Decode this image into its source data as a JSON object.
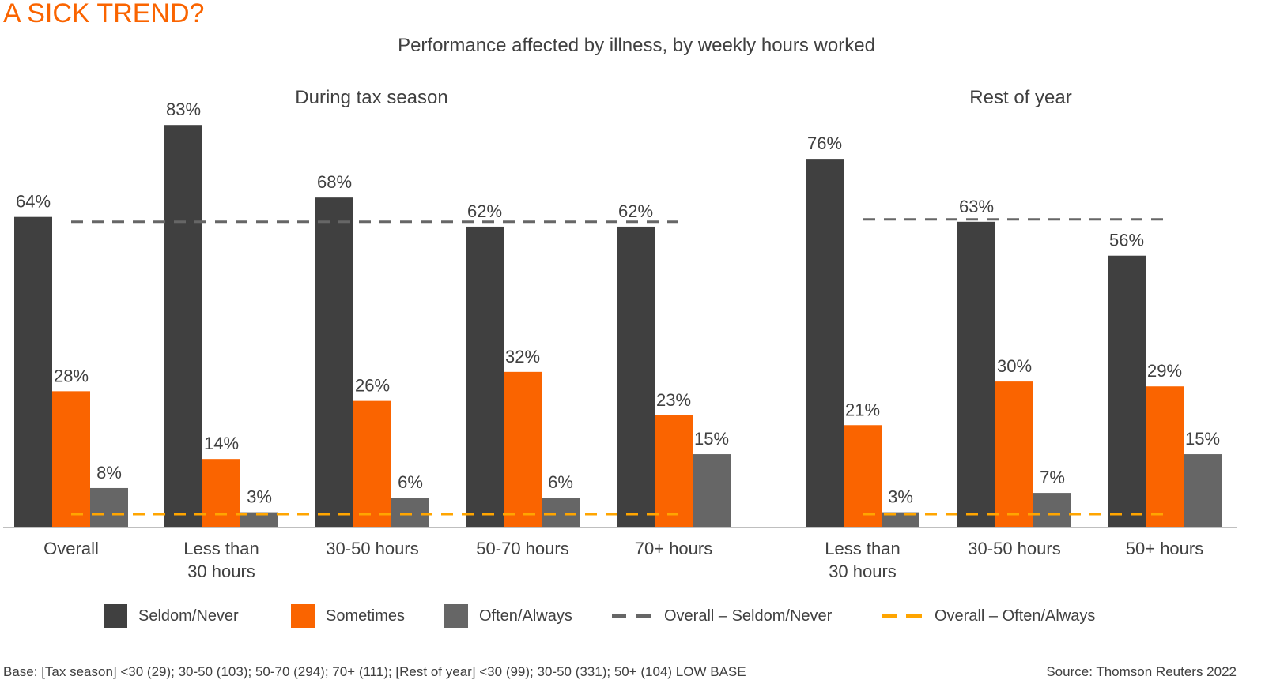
{
  "kicker": "A SICK TREND?",
  "colors": {
    "seldom": "#404040",
    "sometimes": "#fa6400",
    "often": "#666666",
    "overall_seldom_line": "#666666",
    "overall_often_line": "#ffa500",
    "axis": "#bfbfbf",
    "kicker": "#fa6400"
  },
  "legend": [
    {
      "label": "Seldom/Never",
      "kind": "bar",
      "color_key": "seldom"
    },
    {
      "label": "Sometimes",
      "kind": "bar",
      "color_key": "sometimes"
    },
    {
      "label": "Often/Always",
      "kind": "bar",
      "color_key": "often"
    },
    {
      "label": "Overall – Seldom/Never",
      "kind": "dash",
      "color_key": "overall_seldom_line"
    },
    {
      "label": "Overall – Often/Always",
      "kind": "dash",
      "color_key": "overall_often_line"
    }
  ],
  "footnote": "Base: [Tax season] <30 (29); 30-50 (103); 50-70 (294); 70+ (111); [Rest of year] <30 (99); 30-50 (331); 50+ (104) LOW BASE",
  "source": "Source: Thomson Reuters 2022",
  "chart_data": {
    "type": "bar",
    "title": "Performance affected by illness, by weekly hours worked",
    "xlabel": "",
    "ylabel": "",
    "ylim": [
      0,
      90
    ],
    "grid": false,
    "legend_position": "bottom",
    "series_names": [
      "Seldom/Never",
      "Sometimes",
      "Often/Always"
    ],
    "panels": [
      {
        "title": "During tax season",
        "categories": [
          [
            "Overall"
          ],
          [
            "Less than",
            "30 hours"
          ],
          [
            "30-50 hours"
          ],
          [
            "50-70 hours"
          ],
          [
            "70+ hours"
          ]
        ],
        "series": [
          {
            "name": "Seldom/Never",
            "values": [
              64,
              83,
              68,
              62,
              62
            ]
          },
          {
            "name": "Sometimes",
            "values": [
              28,
              14,
              26,
              32,
              23
            ]
          },
          {
            "name": "Often/Always",
            "values": [
              8,
              3,
              6,
              6,
              15
            ]
          }
        ],
        "reference_lines": [
          {
            "name": "Overall – Seldom/Never",
            "value": 63
          },
          {
            "name": "Overall – Often/Always",
            "value": 2.6
          }
        ]
      },
      {
        "title": "Rest of year",
        "categories": [
          [
            "Less than",
            "30 hours"
          ],
          [
            "30-50 hours"
          ],
          [
            "50+ hours"
          ]
        ],
        "series": [
          {
            "name": "Seldom/Never",
            "values": [
              76,
              63,
              56
            ]
          },
          {
            "name": "Sometimes",
            "values": [
              21,
              30,
              29
            ]
          },
          {
            "name": "Often/Always",
            "values": [
              3,
              7,
              15
            ]
          }
        ],
        "reference_lines": [
          {
            "name": "Overall – Seldom/Never",
            "value": 63.5
          },
          {
            "name": "Overall – Often/Always",
            "value": 2.6
          }
        ]
      }
    ]
  }
}
